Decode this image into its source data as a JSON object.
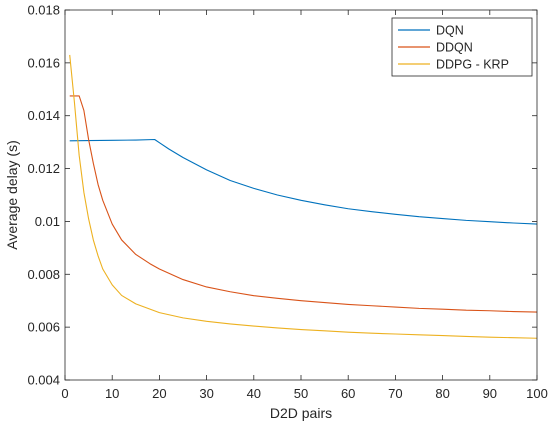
{
  "chart_data": {
    "type": "line",
    "xlabel": "D2D pairs",
    "ylabel": "Average delay (s)",
    "xlim": [
      0,
      100
    ],
    "ylim": [
      0.004,
      0.018
    ],
    "xticks": [
      0,
      10,
      20,
      30,
      40,
      50,
      60,
      70,
      80,
      90,
      100
    ],
    "xtick_labels": [
      "0",
      "10",
      "20",
      "30",
      "40",
      "50",
      "60",
      "70",
      "80",
      "90",
      "100"
    ],
    "yticks": [
      0.004,
      0.006,
      0.008,
      0.01,
      0.012,
      0.014,
      0.016,
      0.018
    ],
    "ytick_labels": [
      "0.004",
      "0.006",
      "0.008",
      "0.01",
      "0.012",
      "0.014",
      "0.016",
      "0.018"
    ],
    "grid": false,
    "legend_position": "top-right",
    "series": [
      {
        "name": "DQN",
        "color": "#0072BD",
        "x": [
          1,
          5,
          10,
          15,
          19,
          20,
          22,
          25,
          30,
          35,
          40,
          45,
          50,
          55,
          60,
          65,
          70,
          75,
          80,
          85,
          90,
          95,
          100
        ],
        "y": [
          0.01305,
          0.01306,
          0.01307,
          0.01308,
          0.0131,
          0.01298,
          0.01274,
          0.01242,
          0.01195,
          0.01155,
          0.01125,
          0.011,
          0.0108,
          0.01063,
          0.01048,
          0.01037,
          0.01027,
          0.01018,
          0.01011,
          0.01004,
          0.00999,
          0.00994,
          0.0099
        ]
      },
      {
        "name": "DDQN",
        "color": "#D95319",
        "x": [
          1,
          3,
          4,
          5,
          6,
          7,
          8,
          10,
          12,
          15,
          18,
          20,
          25,
          30,
          35,
          40,
          45,
          50,
          55,
          60,
          65,
          70,
          75,
          80,
          85,
          90,
          95,
          100
        ],
        "y": [
          0.01475,
          0.01475,
          0.0142,
          0.0131,
          0.0122,
          0.0114,
          0.0108,
          0.0099,
          0.0093,
          0.00875,
          0.0084,
          0.0082,
          0.0078,
          0.00752,
          0.00734,
          0.00719,
          0.00709,
          0.007,
          0.00693,
          0.00686,
          0.00681,
          0.00676,
          0.00671,
          0.00668,
          0.00664,
          0.00662,
          0.00659,
          0.00657
        ]
      },
      {
        "name": "DDPG - KRP",
        "color": "#EDB120",
        "x": [
          1,
          2,
          3,
          4,
          5,
          6,
          7,
          8,
          10,
          12,
          15,
          18,
          20,
          25,
          30,
          35,
          40,
          45,
          50,
          55,
          60,
          65,
          70,
          75,
          80,
          85,
          90,
          95,
          100
        ],
        "y": [
          0.0163,
          0.0145,
          0.0125,
          0.0111,
          0.0101,
          0.0093,
          0.0087,
          0.0082,
          0.0076,
          0.0072,
          0.00688,
          0.00668,
          0.00655,
          0.00635,
          0.00622,
          0.00612,
          0.00604,
          0.00597,
          0.00591,
          0.00586,
          0.00581,
          0.00577,
          0.00574,
          0.00571,
          0.00568,
          0.00565,
          0.00562,
          0.0056,
          0.00558
        ]
      }
    ]
  }
}
